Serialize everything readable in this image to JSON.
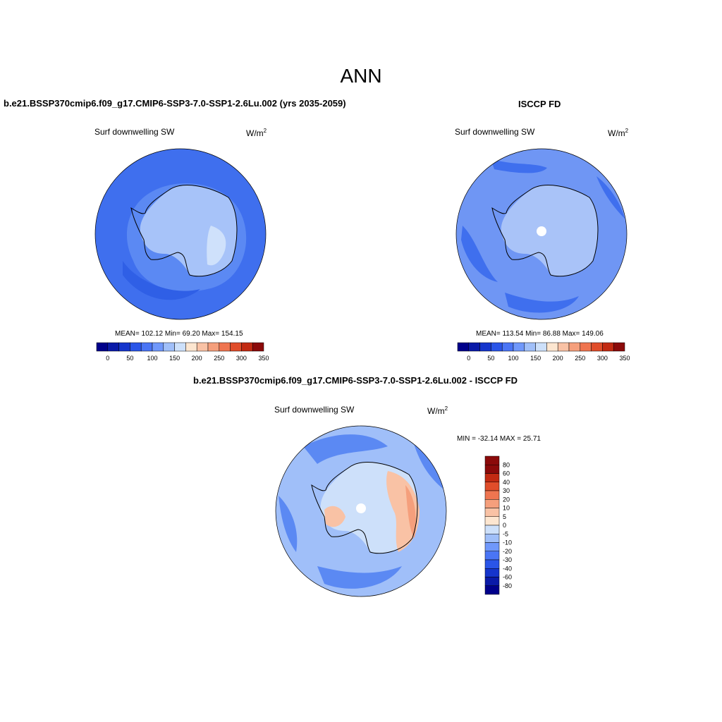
{
  "main_title": "ANN",
  "panels": {
    "model": {
      "title": "b.e21.BSSP370cmip6.f09_g17.CMIP6-SSP3-7.0-SSP1-2.6Lu.002 (yrs 2035-2059)",
      "variable": "Surf downwelling SW",
      "units_base": "W/m",
      "units_exp": "2",
      "stats": "MEAN= 102.12  Min=  69.20  Max= 154.15"
    },
    "obs": {
      "title": "ISCCP FD",
      "variable": "Surf downwelling SW",
      "units_base": "W/m",
      "units_exp": "2",
      "stats": "MEAN= 113.54  Min=  86.88  Max= 149.06"
    },
    "diff": {
      "title": "b.e21.BSSP370cmip6.f09_g17.CMIP6-SSP3-7.0-SSP1-2.6Lu.002 - ISCCP FD",
      "variable": "Surf downwelling SW",
      "units_base": "W/m",
      "units_exp": "2",
      "stats": "MIN = -32.14 MAX =  25.71"
    }
  },
  "abs_colorbar": {
    "colors": [
      "#00008b",
      "#0a1aa8",
      "#1535cc",
      "#2a55e8",
      "#4a75f5",
      "#7098fb",
      "#a0bff9",
      "#cde0fa",
      "#fde6d0",
      "#f9c2a5",
      "#f59f7c",
      "#ef7550",
      "#e04d2a",
      "#c22a12",
      "#8b0a0a"
    ],
    "tick_labels": [
      "0",
      "50",
      "100",
      "150",
      "200",
      "250",
      "300",
      "350"
    ]
  },
  "diff_colorbar": {
    "colors": [
      "#00008b",
      "#0a1aa8",
      "#1535cc",
      "#2a55e8",
      "#4a75f5",
      "#7098fb",
      "#a0bff9",
      "#cde0fa",
      "#fde6d0",
      "#f9c2a5",
      "#f59f7c",
      "#ef7550",
      "#e04d2a",
      "#c22a12",
      "#8b0a0a"
    ],
    "tick_labels": [
      "-80",
      "-60",
      "-40",
      "-30",
      "-20",
      "-10",
      "-5",
      "0",
      "5",
      "10",
      "20",
      "30",
      "40",
      "60",
      "80"
    ]
  },
  "map_colors": {
    "ocean_model": "#3f6fee",
    "ocean_model_ring": "#5b89f3",
    "ice_model": "#a7c3f9",
    "ice_model_light": "#cfe1fb",
    "ocean_obs": "#6f96f4",
    "ocean_obs_dark": "#3f6fee",
    "ice_obs": "#a9c3f8",
    "diff_base": "#a0bff9",
    "diff_neg": "#5b89f3",
    "diff_pos": "#f9c2a5",
    "diff_pos_strong": "#f59f7c",
    "coast": "#000000"
  }
}
